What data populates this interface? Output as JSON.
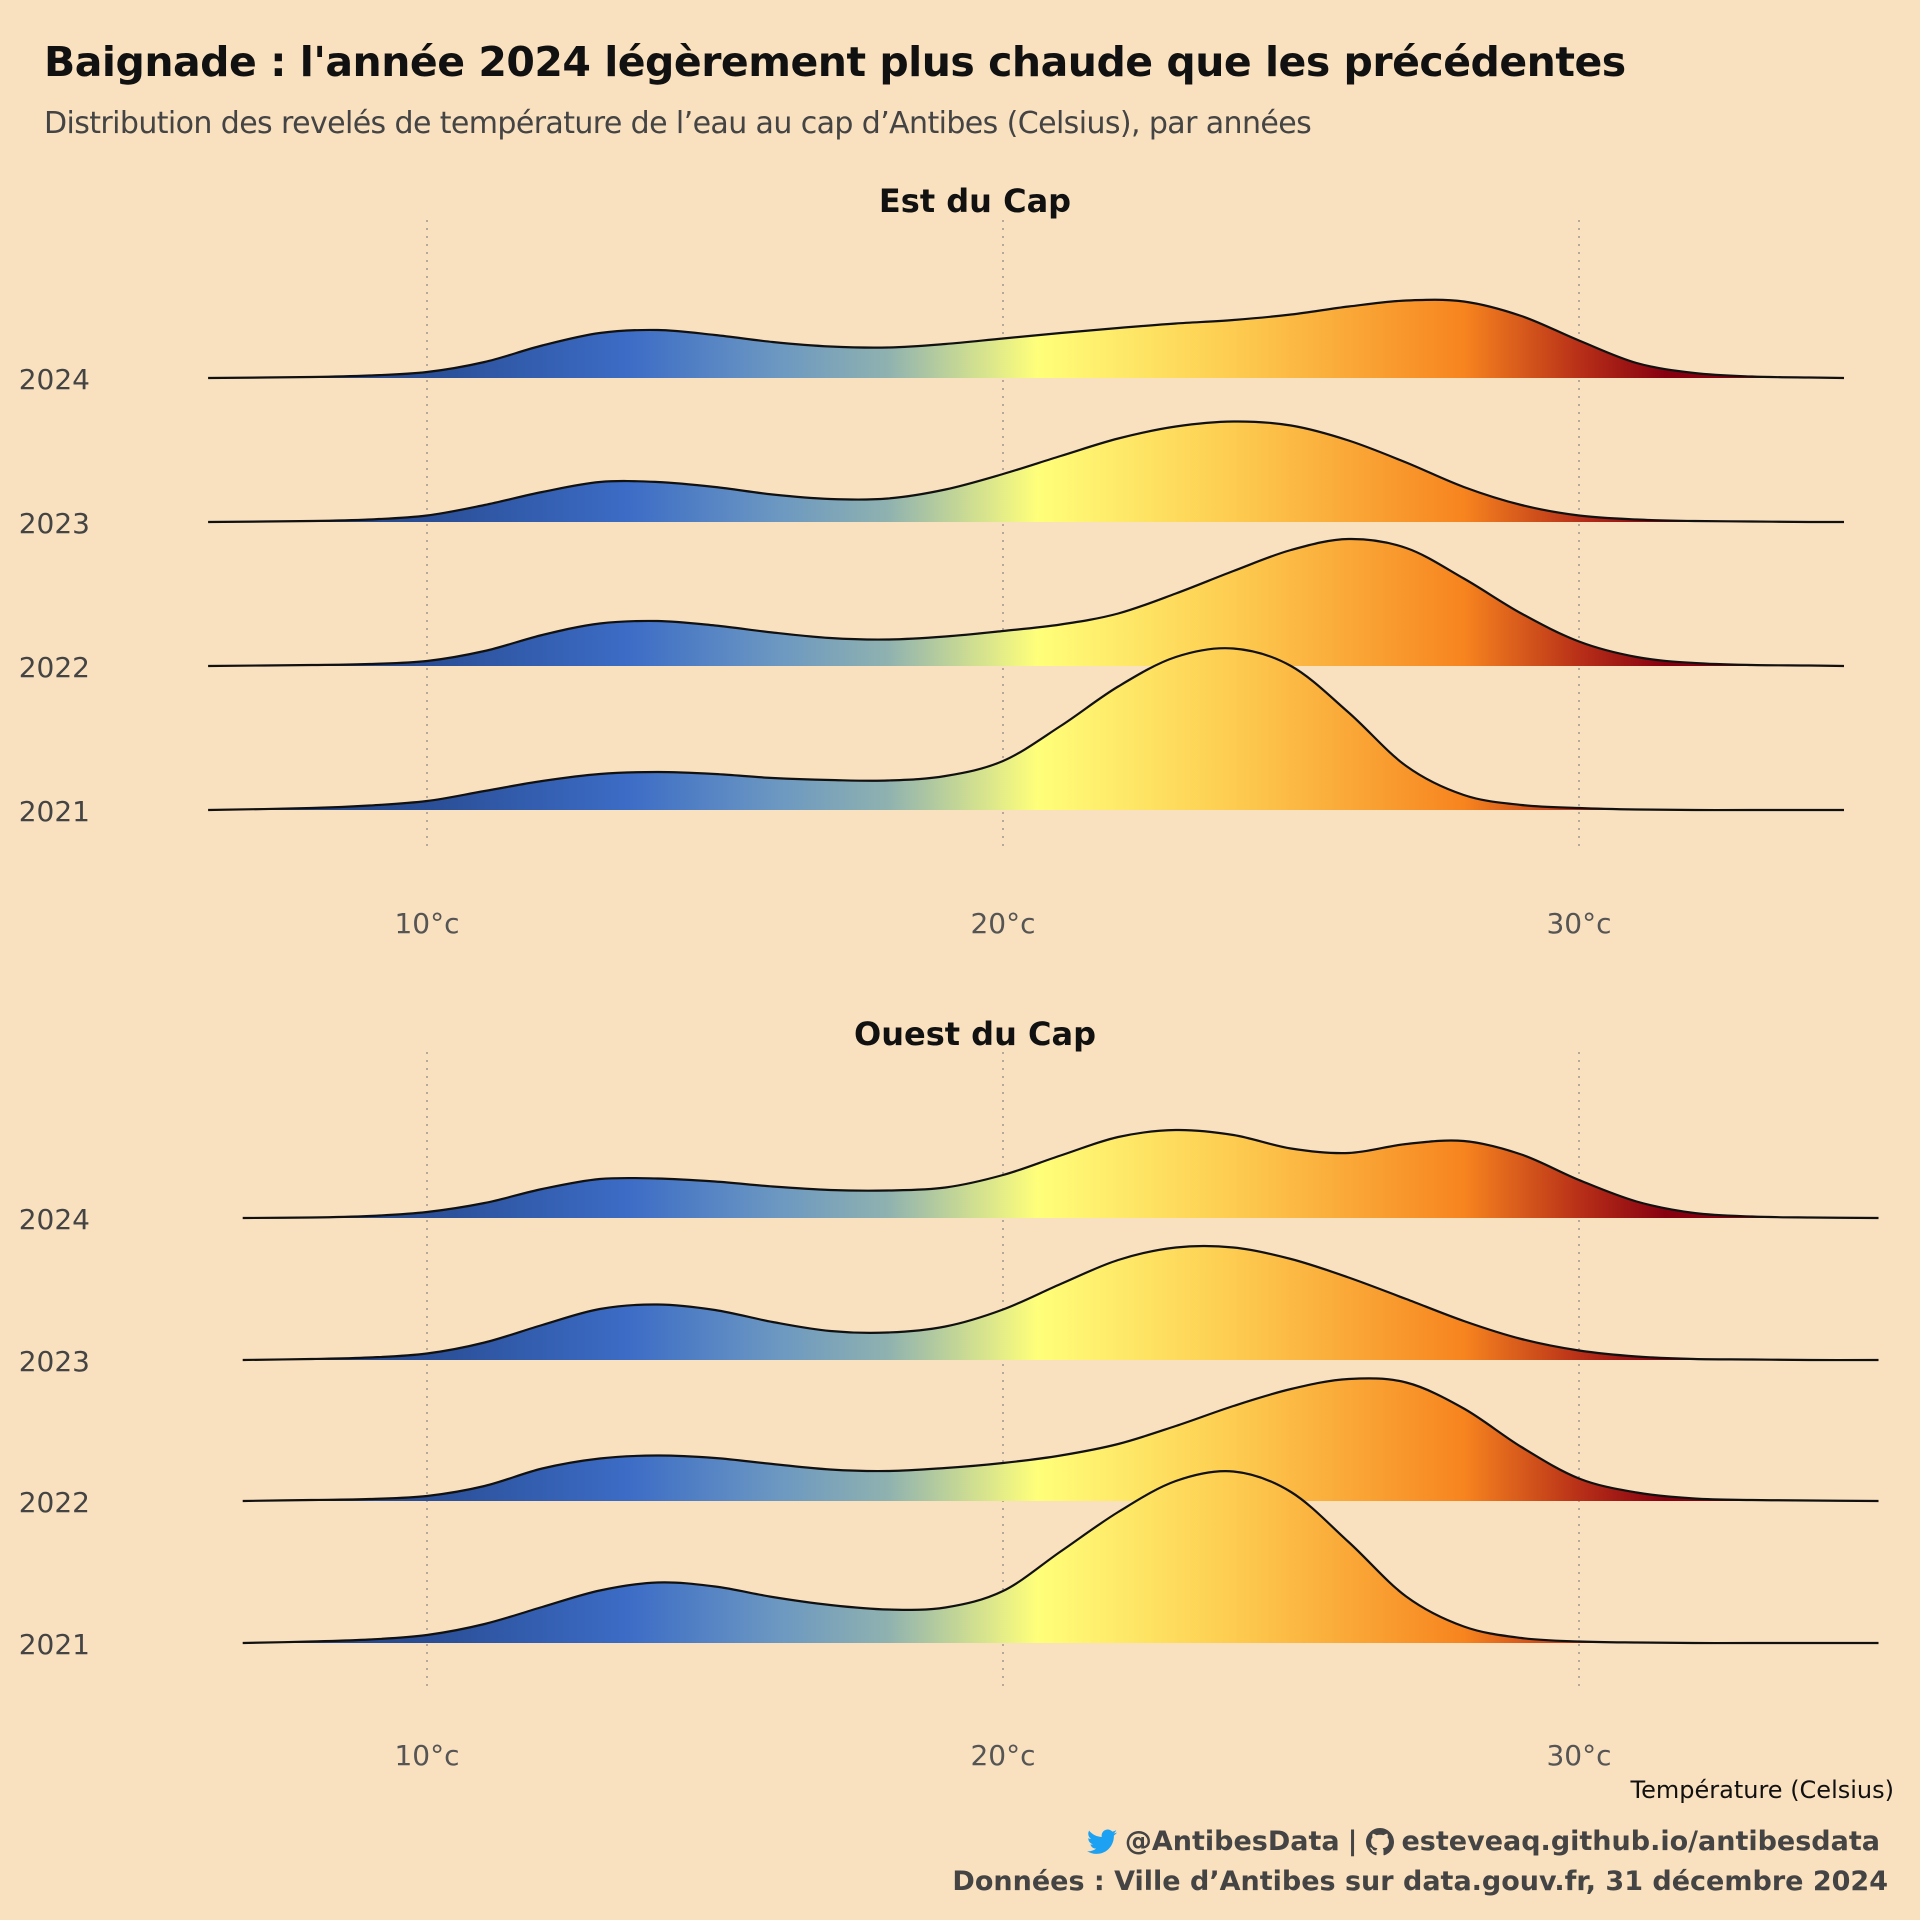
{
  "title": "Baignade : l'année 2024 légèrement plus chaude que les précédentes",
  "subtitle": "Distribution des revelés de température de l’eau au cap d’Antibes (Celsius), par années",
  "x_axis_title": "Température (Celsius)",
  "caption": {
    "twitter_handle": "@AntibesData",
    "separator": "|",
    "github_url": "esteveaq.github.io/antibesdata",
    "source": "Données : Ville d’Antibes sur data.gouv.fr, 31 décembre 2024",
    "twitter_icon": "twitter-bird-icon",
    "github_icon": "github-icon"
  },
  "colors": {
    "background": "#F9E0BF",
    "gradient": [
      {
        "t": 6,
        "color": "#1F3F7A"
      },
      {
        "t": 10,
        "color": "#2A4E96"
      },
      {
        "t": 13.5,
        "color": "#3C6CC6"
      },
      {
        "t": 16,
        "color": "#6A96C2"
      },
      {
        "t": 18,
        "color": "#8FB2B0"
      },
      {
        "t": 20.6,
        "color": "#FFFF7A"
      },
      {
        "t": 24,
        "color": "#FDCC50"
      },
      {
        "t": 28,
        "color": "#F7841F"
      },
      {
        "t": 30,
        "color": "#B83018"
      },
      {
        "t": 31.5,
        "color": "#870010"
      },
      {
        "t": 34,
        "color": "#870010"
      }
    ]
  },
  "chart_data": [
    {
      "type": "ridgeline",
      "title": "Est du Cap",
      "xlim": [
        6.2,
        34.6
      ],
      "x_ticks": [
        10,
        20,
        30
      ],
      "x_tick_labels": [
        "10°c",
        "20°c",
        "30°c"
      ],
      "grid": "vertical dotted at ticks",
      "series": [
        {
          "name": "2024",
          "x": [
            6.2,
            8,
            9,
            10,
            11,
            12,
            13,
            14,
            15,
            16,
            17,
            18,
            19,
            20,
            21,
            22,
            23,
            24,
            25,
            26,
            27,
            28,
            29,
            30,
            31,
            32,
            33,
            34,
            34.6
          ],
          "density": [
            0,
            0.02,
            0.05,
            0.12,
            0.32,
            0.65,
            0.9,
            0.96,
            0.86,
            0.72,
            0.63,
            0.61,
            0.68,
            0.79,
            0.9,
            1.0,
            1.09,
            1.16,
            1.27,
            1.43,
            1.55,
            1.53,
            1.24,
            0.75,
            0.3,
            0.1,
            0.03,
            0.01,
            0
          ]
        },
        {
          "name": "2023",
          "x": [
            6.2,
            8,
            9,
            10,
            11,
            12,
            13,
            14,
            15,
            16,
            17,
            18,
            19,
            20,
            21,
            22,
            23,
            24,
            25,
            26,
            27,
            28,
            29,
            30,
            31,
            32,
            33,
            34,
            34.6
          ],
          "density": [
            0,
            0.02,
            0.05,
            0.13,
            0.34,
            0.6,
            0.8,
            0.8,
            0.7,
            0.55,
            0.46,
            0.47,
            0.65,
            0.96,
            1.32,
            1.67,
            1.91,
            2.01,
            1.93,
            1.63,
            1.19,
            0.7,
            0.34,
            0.13,
            0.05,
            0.02,
            0.01,
            0,
            0
          ]
        },
        {
          "name": "2022",
          "x": [
            6.2,
            8,
            9,
            10,
            11,
            12,
            13,
            14,
            15,
            16,
            17,
            18,
            19,
            20,
            21,
            22,
            23,
            24,
            25,
            26,
            27,
            28,
            29,
            30,
            31,
            32,
            33,
            34,
            34.6
          ],
          "density": [
            0,
            0.02,
            0.04,
            0.1,
            0.3,
            0.62,
            0.85,
            0.9,
            0.81,
            0.67,
            0.56,
            0.53,
            0.59,
            0.7,
            0.83,
            1.05,
            1.45,
            1.9,
            2.32,
            2.54,
            2.36,
            1.75,
            1.05,
            0.49,
            0.18,
            0.06,
            0.02,
            0.01,
            0
          ]
        },
        {
          "name": "2021",
          "x": [
            6.2,
            8,
            9,
            10,
            11,
            12,
            13,
            14,
            15,
            16,
            17,
            18,
            19,
            20,
            21,
            22,
            23,
            24,
            25,
            26,
            27,
            28,
            29,
            30,
            31,
            32,
            33,
            34,
            34.6
          ],
          "density": [
            0,
            0.04,
            0.09,
            0.18,
            0.38,
            0.58,
            0.72,
            0.76,
            0.72,
            0.64,
            0.6,
            0.59,
            0.68,
            0.98,
            1.68,
            2.47,
            3.06,
            3.23,
            2.88,
            1.95,
            0.88,
            0.3,
            0.1,
            0.04,
            0.01,
            0,
            0,
            0,
            0
          ]
        }
      ]
    },
    {
      "type": "ridgeline",
      "title": "Ouest du Cap",
      "xlim": [
        6.8,
        35.2
      ],
      "x_ticks": [
        10,
        20,
        30
      ],
      "x_tick_labels": [
        "10°c",
        "20°c",
        "30°c"
      ],
      "grid": "vertical dotted at ticks",
      "series": [
        {
          "name": "2024",
          "x": [
            6.8,
            8,
            9,
            10,
            11,
            12,
            13,
            14,
            15,
            16,
            17,
            18,
            19,
            20,
            21,
            22,
            23,
            24,
            25,
            26,
            27,
            28,
            29,
            30,
            31,
            32,
            33,
            34,
            35.2
          ],
          "density": [
            0,
            0.01,
            0.04,
            0.12,
            0.3,
            0.58,
            0.78,
            0.79,
            0.73,
            0.63,
            0.56,
            0.55,
            0.61,
            0.86,
            1.25,
            1.62,
            1.76,
            1.66,
            1.39,
            1.3,
            1.48,
            1.54,
            1.27,
            0.76,
            0.33,
            0.1,
            0.03,
            0.01,
            0
          ]
        },
        {
          "name": "2023",
          "x": [
            6.8,
            8,
            9,
            10,
            11,
            12,
            13,
            14,
            15,
            16,
            17,
            18,
            19,
            20,
            21,
            22,
            23,
            24,
            25,
            26,
            27,
            28,
            29,
            30,
            31,
            32,
            33,
            34,
            35.2
          ],
          "density": [
            0,
            0.02,
            0.05,
            0.13,
            0.35,
            0.7,
            1.02,
            1.11,
            1.0,
            0.76,
            0.58,
            0.55,
            0.67,
            1.01,
            1.52,
            2.0,
            2.25,
            2.25,
            2.02,
            1.65,
            1.22,
            0.78,
            0.42,
            0.19,
            0.07,
            0.02,
            0.01,
            0,
            0
          ]
        },
        {
          "name": "2022",
          "x": [
            6.8,
            8,
            9,
            10,
            11,
            12,
            13,
            14,
            15,
            16,
            17,
            18,
            19,
            20,
            21,
            22,
            23,
            24,
            25,
            26,
            27,
            28,
            29,
            30,
            31,
            32,
            33,
            34,
            35.2
          ],
          "density": [
            0,
            0.02,
            0.04,
            0.1,
            0.3,
            0.65,
            0.85,
            0.91,
            0.86,
            0.74,
            0.63,
            0.6,
            0.66,
            0.76,
            0.91,
            1.14,
            1.5,
            1.9,
            2.24,
            2.44,
            2.37,
            1.85,
            1.08,
            0.45,
            0.17,
            0.05,
            0.02,
            0.01,
            0
          ]
        },
        {
          "name": "2021",
          "x": [
            6.8,
            8,
            9,
            10,
            11,
            12,
            13,
            14,
            15,
            16,
            17,
            18,
            19,
            20,
            21,
            22,
            23,
            24,
            25,
            26,
            27,
            28,
            29,
            30,
            31,
            32,
            33,
            34,
            35.2
          ],
          "density": [
            0,
            0.03,
            0.07,
            0.16,
            0.38,
            0.72,
            1.05,
            1.21,
            1.13,
            0.92,
            0.76,
            0.67,
            0.71,
            1.04,
            1.83,
            2.62,
            3.24,
            3.43,
            3.02,
            2.02,
            0.93,
            0.33,
            0.1,
            0.03,
            0.01,
            0,
            0,
            0,
            0
          ]
        }
      ]
    }
  ]
}
